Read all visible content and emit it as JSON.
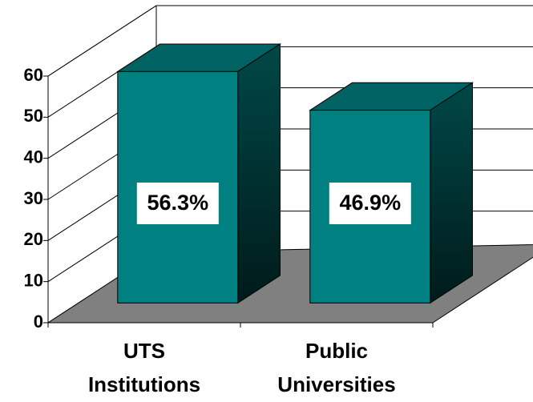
{
  "chart_data": {
    "type": "bar3d",
    "categories": [
      [
        "UTS",
        "Institutions"
      ],
      [
        "Public",
        "Universities"
      ]
    ],
    "values": [
      56.3,
      46.9
    ],
    "value_labels": [
      "56.3%",
      "46.9%"
    ],
    "color": "#008080",
    "ylim": [
      0,
      60
    ],
    "yticks": [
      0,
      10,
      20,
      30,
      40,
      50,
      60
    ],
    "grid": true
  }
}
